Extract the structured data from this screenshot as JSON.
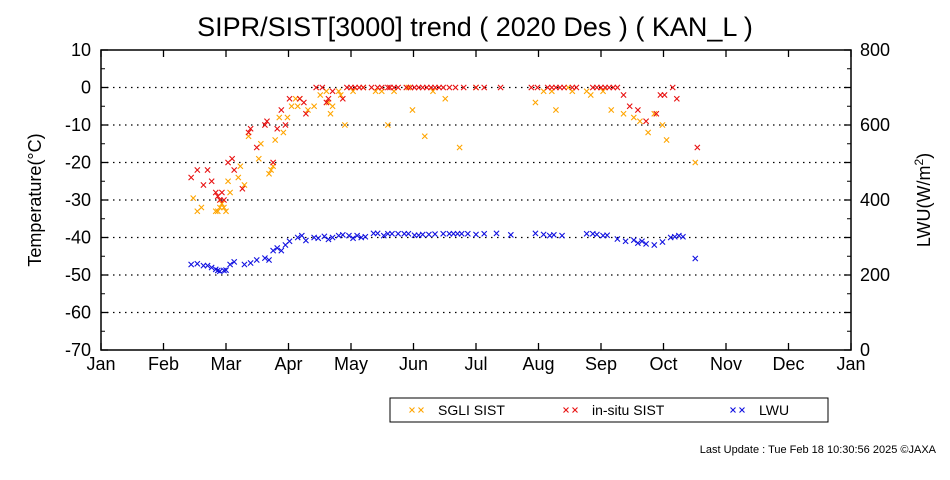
{
  "chart_data": {
    "type": "scatter",
    "title": "SIPR/SIST[3000] trend ( 2020 Des ) ( KAN_L )",
    "x_tick_labels": [
      "Jan",
      "Feb",
      "Mar",
      "Apr",
      "May",
      "Jun",
      "Jul",
      "Aug",
      "Sep",
      "Oct",
      "Nov",
      "Dec",
      "Jan"
    ],
    "y_left": {
      "label": "Temperature(°C)",
      "range": [
        -70,
        10
      ],
      "ticks": [
        10,
        0,
        -10,
        -20,
        -30,
        -40,
        -50,
        -60,
        -70
      ],
      "tick_labels": [
        "10",
        "0",
        "-10",
        "-20",
        "-30",
        "-40",
        "-50",
        "-60",
        "-70"
      ]
    },
    "y_right": {
      "label": "LWU(W/m",
      "label_sup": "2",
      "label_end": ")",
      "range": [
        0,
        800
      ],
      "ticks": [
        800,
        600,
        400,
        200,
        0
      ],
      "tick_labels": [
        "800",
        "600",
        "400",
        "200",
        "0"
      ]
    },
    "grid": "dotted horizontal at -60 to 0",
    "legend_position": "bottom-right",
    "series": [
      {
        "name": "SGLI SIST",
        "color": "#ffa500",
        "axis": "left",
        "points": [
          [
            45,
            -29.5
          ],
          [
            47,
            -33
          ],
          [
            49,
            -32
          ],
          [
            56,
            -33
          ],
          [
            57,
            -33
          ],
          [
            58,
            -32
          ],
          [
            59,
            -31
          ],
          [
            60,
            -32
          ],
          [
            61,
            -33
          ],
          [
            62,
            -25
          ],
          [
            63,
            -28
          ],
          [
            67,
            -24
          ],
          [
            68,
            -21
          ],
          [
            70,
            -26
          ],
          [
            72,
            -13
          ],
          [
            77,
            -19
          ],
          [
            78,
            -15
          ],
          [
            82,
            -23
          ],
          [
            83,
            -22
          ],
          [
            84,
            -21
          ],
          [
            85,
            -14
          ],
          [
            87,
            -8
          ],
          [
            89,
            -12
          ],
          [
            91,
            -8
          ],
          [
            93,
            -5
          ],
          [
            95,
            -3
          ],
          [
            96,
            -5
          ],
          [
            97,
            -3
          ],
          [
            101,
            -6
          ],
          [
            104,
            -5
          ],
          [
            107,
            -2
          ],
          [
            110,
            -1
          ],
          [
            111,
            -4
          ],
          [
            112,
            -7
          ],
          [
            113,
            -5
          ],
          [
            116,
            -1
          ],
          [
            117,
            -2
          ],
          [
            119,
            -10
          ],
          [
            123,
            -1
          ],
          [
            128,
            0
          ],
          [
            134,
            -1
          ],
          [
            137,
            -1
          ],
          [
            140,
            -10
          ],
          [
            143,
            -1
          ],
          [
            150,
            0
          ],
          [
            152,
            -6
          ],
          [
            158,
            -13
          ],
          [
            162,
            -1
          ],
          [
            168,
            -3
          ],
          [
            175,
            -16
          ],
          [
            183,
            0
          ],
          [
            212,
            -4
          ],
          [
            216,
            -1
          ],
          [
            220,
            -1
          ],
          [
            222,
            -6
          ],
          [
            228,
            0
          ],
          [
            230,
            -1
          ],
          [
            237,
            -1
          ],
          [
            239,
            -2
          ],
          [
            245,
            -1
          ],
          [
            249,
            -6
          ],
          [
            255,
            -7
          ],
          [
            260,
            -8
          ],
          [
            263,
            -9
          ],
          [
            267,
            -12
          ],
          [
            270,
            -7
          ],
          [
            274,
            -10
          ],
          [
            276,
            -14
          ],
          [
            290,
            -20
          ]
        ]
      },
      {
        "name": "in-situ SIST",
        "color": "#e81010",
        "axis": "left",
        "points": [
          [
            44,
            -24
          ],
          [
            47,
            -22
          ],
          [
            50,
            -26
          ],
          [
            52,
            -22
          ],
          [
            54,
            -25
          ],
          [
            56,
            -28
          ],
          [
            57,
            -29
          ],
          [
            58,
            -30
          ],
          [
            59,
            -28
          ],
          [
            60,
            -30
          ],
          [
            62,
            -20
          ],
          [
            64,
            -19
          ],
          [
            65,
            -22
          ],
          [
            69,
            -27
          ],
          [
            72,
            -12
          ],
          [
            73,
            -11
          ],
          [
            76,
            -16
          ],
          [
            80,
            -10
          ],
          [
            81,
            -9
          ],
          [
            84,
            -20
          ],
          [
            86,
            -11
          ],
          [
            88,
            -6
          ],
          [
            90,
            -10
          ],
          [
            92,
            -3
          ],
          [
            97,
            -3
          ],
          [
            99,
            -4
          ],
          [
            100,
            -7
          ],
          [
            105,
            0
          ],
          [
            108,
            0
          ],
          [
            110,
            -4
          ],
          [
            111,
            -3
          ],
          [
            113,
            -1
          ],
          [
            118,
            -3
          ],
          [
            120,
            0
          ],
          [
            122,
            0
          ],
          [
            124,
            0
          ],
          [
            126,
            0
          ],
          [
            128,
            0
          ],
          [
            132,
            0
          ],
          [
            135,
            0
          ],
          [
            137,
            0
          ],
          [
            140,
            0
          ],
          [
            141,
            0
          ],
          [
            143,
            0
          ],
          [
            145,
            0
          ],
          [
            149,
            0
          ],
          [
            151,
            0
          ],
          [
            153,
            0
          ],
          [
            155,
            0
          ],
          [
            157,
            0
          ],
          [
            159,
            0
          ],
          [
            161,
            0
          ],
          [
            163,
            0
          ],
          [
            165,
            0
          ],
          [
            167,
            0
          ],
          [
            170,
            0
          ],
          [
            173,
            0
          ],
          [
            177,
            0
          ],
          [
            183,
            0
          ],
          [
            187,
            0
          ],
          [
            195,
            0
          ],
          [
            210,
            0
          ],
          [
            213,
            0
          ],
          [
            218,
            0
          ],
          [
            220,
            0
          ],
          [
            222,
            0
          ],
          [
            224,
            0
          ],
          [
            226,
            0
          ],
          [
            230,
            0
          ],
          [
            232,
            0
          ],
          [
            240,
            0
          ],
          [
            242,
            0
          ],
          [
            244,
            0
          ],
          [
            246,
            0
          ],
          [
            248,
            0
          ],
          [
            250,
            0
          ],
          [
            252,
            0
          ],
          [
            255,
            -2
          ],
          [
            258,
            -5
          ],
          [
            262,
            -6
          ],
          [
            266,
            -9
          ],
          [
            271,
            -7
          ],
          [
            273,
            -2
          ],
          [
            275,
            -2
          ],
          [
            279,
            0
          ],
          [
            281,
            -3
          ],
          [
            291,
            -16
          ]
        ]
      },
      {
        "name": "LWU",
        "color": "#1010e0",
        "axis": "right",
        "points": [
          [
            44,
            228
          ],
          [
            47,
            230
          ],
          [
            50,
            225
          ],
          [
            52,
            225
          ],
          [
            54,
            220
          ],
          [
            56,
            215
          ],
          [
            57,
            212
          ],
          [
            58,
            210
          ],
          [
            60,
            212
          ],
          [
            61,
            213
          ],
          [
            63,
            228
          ],
          [
            65,
            235
          ],
          [
            70,
            228
          ],
          [
            73,
            232
          ],
          [
            76,
            240
          ],
          [
            80,
            245
          ],
          [
            82,
            240
          ],
          [
            84,
            265
          ],
          [
            86,
            272
          ],
          [
            88,
            265
          ],
          [
            90,
            280
          ],
          [
            92,
            290
          ],
          [
            96,
            300
          ],
          [
            98,
            305
          ],
          [
            100,
            292
          ],
          [
            104,
            300
          ],
          [
            106,
            298
          ],
          [
            109,
            303
          ],
          [
            111,
            295
          ],
          [
            113,
            300
          ],
          [
            116,
            305
          ],
          [
            118,
            307
          ],
          [
            121,
            305
          ],
          [
            123,
            298
          ],
          [
            125,
            305
          ],
          [
            127,
            300
          ],
          [
            129,
            302
          ],
          [
            133,
            311
          ],
          [
            135,
            311
          ],
          [
            138,
            305
          ],
          [
            140,
            310
          ],
          [
            142,
            310
          ],
          [
            145,
            310
          ],
          [
            148,
            310
          ],
          [
            150,
            310
          ],
          [
            153,
            306
          ],
          [
            155,
            306
          ],
          [
            157,
            308
          ],
          [
            160,
            308
          ],
          [
            163,
            309
          ],
          [
            167,
            310
          ],
          [
            170,
            310
          ],
          [
            172,
            310
          ],
          [
            174,
            310
          ],
          [
            176,
            310
          ],
          [
            179,
            310
          ],
          [
            183,
            308
          ],
          [
            187,
            310
          ],
          [
            193,
            311
          ],
          [
            200,
            307
          ],
          [
            212,
            311
          ],
          [
            216,
            308
          ],
          [
            219,
            305
          ],
          [
            221,
            307
          ],
          [
            225,
            305
          ],
          [
            237,
            310
          ],
          [
            240,
            310
          ],
          [
            242,
            308
          ],
          [
            245,
            305
          ],
          [
            247,
            306
          ],
          [
            252,
            296
          ],
          [
            256,
            290
          ],
          [
            260,
            293
          ],
          [
            262,
            285
          ],
          [
            264,
            290
          ],
          [
            266,
            283
          ],
          [
            270,
            280
          ],
          [
            274,
            288
          ],
          [
            278,
            300
          ],
          [
            280,
            302
          ],
          [
            282,
            305
          ],
          [
            284,
            302
          ],
          [
            290,
            244
          ]
        ]
      }
    ]
  },
  "footer": {
    "last_update": "Last Update : Tue Feb 18 10:30:56 2025  ©JAXA"
  }
}
